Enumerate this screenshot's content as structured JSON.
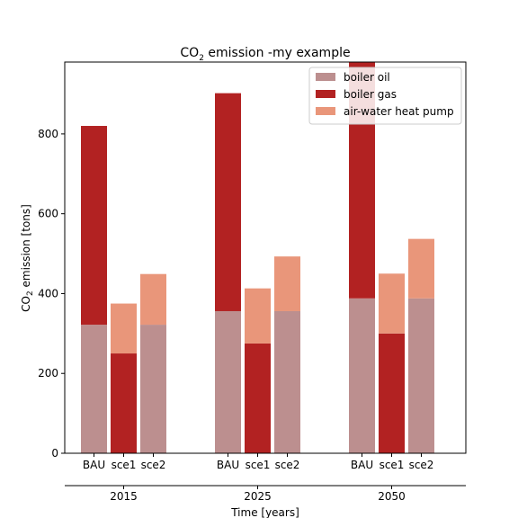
{
  "chart_data": {
    "type": "bar",
    "stacked": true,
    "title_main": "CO",
    "title_sub": "2",
    "title_rest": " emission -my example",
    "ylabel_main": "CO",
    "ylabel_sub": "2",
    "ylabel_rest": " emission [tons]",
    "xlabel": "Time [years]",
    "ylim": [
      0,
      980
    ],
    "yticks": [
      "0",
      "200",
      "400",
      "600",
      "800"
    ],
    "ytick_values": [
      0,
      200,
      400,
      600,
      800
    ],
    "groups": [
      "2015",
      "2025",
      "2050"
    ],
    "scenarios": [
      "BAU",
      "sce1",
      "sce2"
    ],
    "series": [
      {
        "name": "boiler oil",
        "color": "#bc8f8f",
        "values": [
          [
            322,
            0,
            322
          ],
          [
            356,
            0,
            356
          ],
          [
            388,
            0,
            388
          ]
        ]
      },
      {
        "name": "boiler gas",
        "color": "#b22222",
        "values": [
          [
            498,
            250,
            0
          ],
          [
            546,
            275,
            0
          ],
          [
            592,
            300,
            0
          ]
        ]
      },
      {
        "name": "air-water heat pump",
        "color": "#e9967a",
        "values": [
          [
            0,
            125,
            127
          ],
          [
            0,
            138,
            137
          ],
          [
            0,
            150,
            149
          ]
        ]
      }
    ],
    "legend_position": "top-right",
    "grid": false
  }
}
